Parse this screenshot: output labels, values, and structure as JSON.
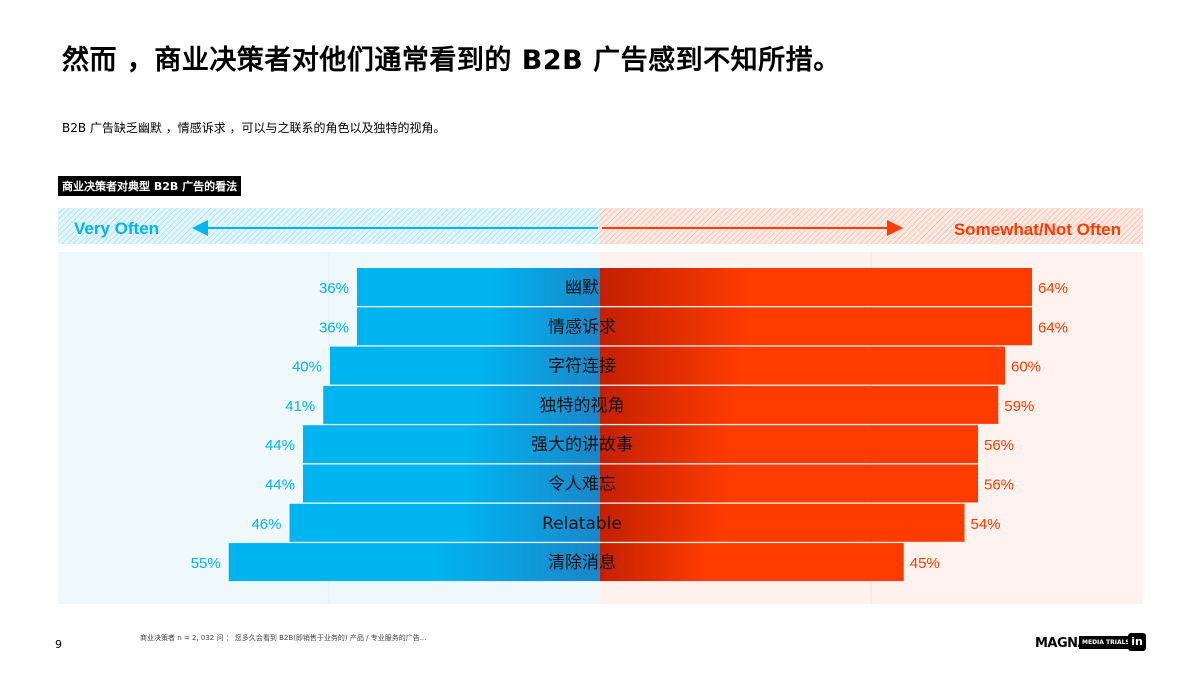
{
  "header": {
    "title": "然而 ，商业决策者对他们通常看到的 B2B 广告感到不知所措。",
    "subtitle": "B2B 广告缺乏幽默 ，情感诉求 ，可以与之联系的角色以及独特的视角。"
  },
  "chart_title": "商业决策者对典型 B2B 广告的看法",
  "colors": {
    "very_often": "#00b4f0",
    "somewhat": "#ff3c00",
    "left_panel": "#eff9fc",
    "right_panel": "#fff2ef"
  },
  "chart_data": {
    "type": "bar",
    "orientation": "diverging-horizontal",
    "categories": [
      "幽默",
      "情感诉求",
      "字符连接",
      "独特的视角",
      "强大的讲故事",
      "令人难忘",
      "Relatable",
      "清除消息"
    ],
    "series": [
      {
        "name": "Very Often",
        "values": [
          36,
          36,
          40,
          41,
          44,
          44,
          46,
          55
        ],
        "labels": [
          "36%",
          "36%",
          "40%",
          "41%",
          "44%",
          "44%",
          "46%",
          "55%"
        ]
      },
      {
        "name": "Somewhat/Not Often",
        "values": [
          64,
          64,
          60,
          59,
          56,
          56,
          54,
          45
        ],
        "labels": [
          "64%",
          "64%",
          "60%",
          "59%",
          "56%",
          "56%",
          "54%",
          "45%"
        ]
      }
    ],
    "unit": "%"
  },
  "footer": {
    "page_number": "9",
    "footnote": "商业决策者 n = 2, 032 问 ： 您多久会看到 B2B(即销售于业务的) 产品 / 专业服务的广告...",
    "logo_magna": "MAGNA",
    "logo_trials": "MEDIA TRIALS",
    "logo_linkedin": "in"
  }
}
